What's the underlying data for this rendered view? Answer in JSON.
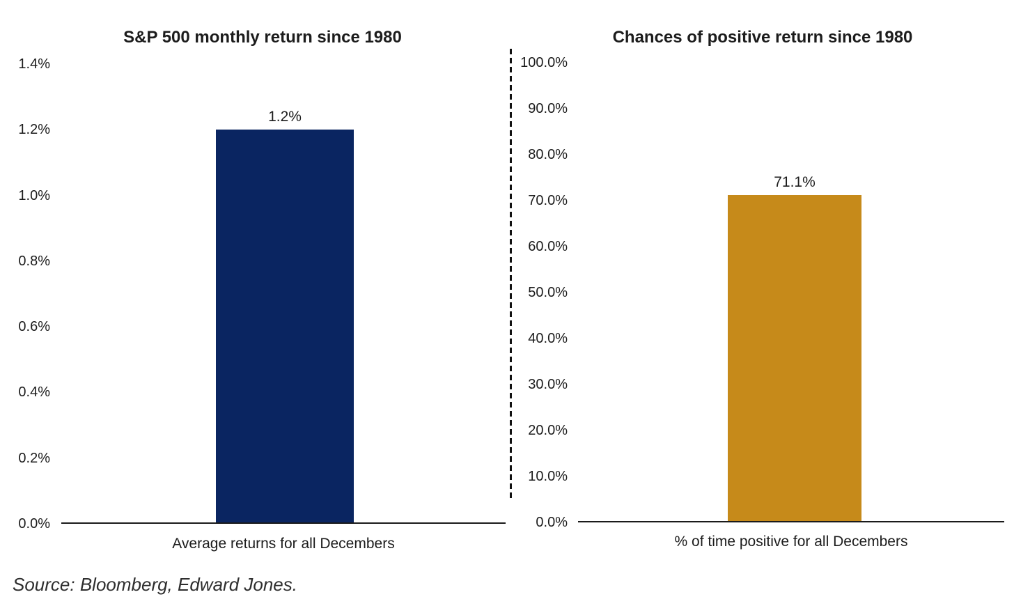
{
  "page": {
    "background": "#ffffff",
    "source_note": "Source: Bloomberg, Edward Jones."
  },
  "chart_data": [
    {
      "type": "bar",
      "title": "S&P 500 monthly return since 1980",
      "categories": [
        "Average returns for all Decembers"
      ],
      "values": [
        1.2
      ],
      "value_labels": [
        "1.2%"
      ],
      "xlabel": "Average returns for all Decembers",
      "ylabel": "",
      "ylim": [
        0,
        1.4
      ],
      "ytick_step": 0.2,
      "ytick_labels": [
        "0.0%",
        "0.2%",
        "0.4%",
        "0.6%",
        "0.8%",
        "1.0%",
        "1.2%",
        "1.4%"
      ],
      "bar_color": "#0a2561",
      "grid": false,
      "legend": "none"
    },
    {
      "type": "bar",
      "title": "Chances of positive return since 1980",
      "categories": [
        "% of time positive for all Decembers"
      ],
      "values": [
        71.1
      ],
      "value_labels": [
        "71.1%"
      ],
      "xlabel": "% of time positive for all Decembers",
      "ylabel": "",
      "ylim": [
        0,
        100
      ],
      "ytick_step": 10,
      "ytick_labels": [
        "0.0%",
        "10.0%",
        "20.0%",
        "30.0%",
        "40.0%",
        "50.0%",
        "60.0%",
        "70.0%",
        "80.0%",
        "90.0%",
        "100.0%"
      ],
      "bar_color": "#c68a1a",
      "grid": false,
      "legend": "none"
    }
  ]
}
